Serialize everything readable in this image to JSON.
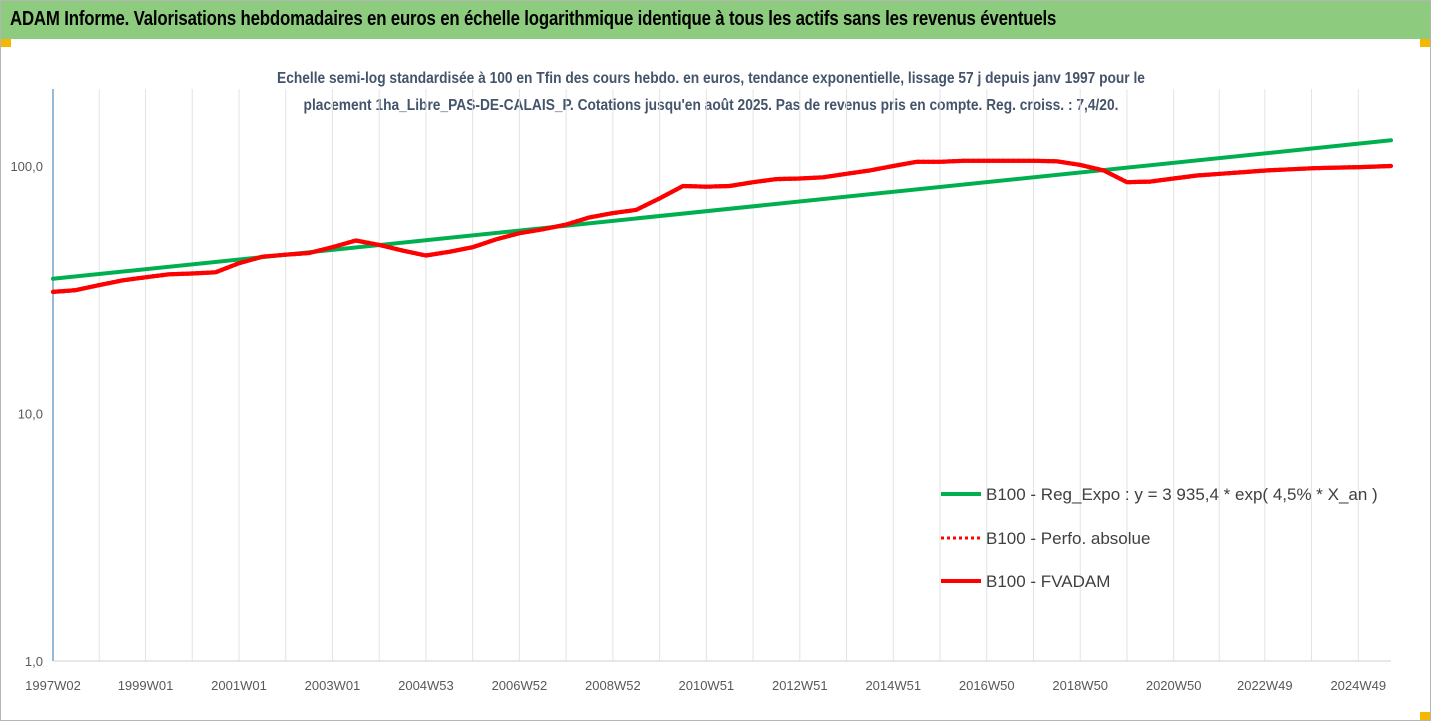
{
  "header": {
    "title": "ADAM Informe. Valorisations hebdomadaires en euros en échelle logarithmique identique à tous les actifs sans les revenus éventuels"
  },
  "chart_data": {
    "type": "line",
    "subtitle_line1": "Echelle semi-log standardisée à 100 en Tfin des cours hebdo. en euros, tendance exponentielle, lissage 57 j depuis janv 1997 pour le",
    "subtitle_line2": "placement 1ha_Libre_PAS-DE-CALAIS_P. Cotations jusqu'en août 2025. Pas de revenus pris en compte. Reg. croiss. : 7,4/20.",
    "y_scale": "log",
    "ylim": [
      1,
      200
    ],
    "y_ticks": [
      {
        "value": 1,
        "label": "1,0"
      },
      {
        "value": 10,
        "label": "10,0"
      },
      {
        "value": 100,
        "label": "100,0"
      }
    ],
    "xlim": [
      1997.02,
      2025.65
    ],
    "x_ticks": [
      {
        "value": 1997.02,
        "label": "1997W02"
      },
      {
        "value": 1999.0,
        "label": "1999W01"
      },
      {
        "value": 2001.0,
        "label": "2001W01"
      },
      {
        "value": 2003.0,
        "label": "2003W01"
      },
      {
        "value": 2005.0,
        "label": "2004W53"
      },
      {
        "value": 2007.0,
        "label": "2006W52"
      },
      {
        "value": 2009.0,
        "label": "2008W52"
      },
      {
        "value": 2011.0,
        "label": "2010W51"
      },
      {
        "value": 2013.0,
        "label": "2012W51"
      },
      {
        "value": 2015.0,
        "label": "2014W51"
      },
      {
        "value": 2017.0,
        "label": "2016W50"
      },
      {
        "value": 2019.0,
        "label": "2018W50"
      },
      {
        "value": 2021.0,
        "label": "2020W50"
      },
      {
        "value": 2022.95,
        "label": "2022W49"
      },
      {
        "value": 2024.95,
        "label": "2024W49"
      }
    ],
    "grid": "vertical",
    "legend_position": "bottom-right",
    "series": [
      {
        "name": "B100 - Reg_Expo : y = 3 935,4 * exp( 4,5% *  X_an )",
        "color": "#00b050",
        "style": "solid",
        "x": [
          1997.02,
          2025.65
        ],
        "y": [
          35,
          127
        ]
      },
      {
        "name": "B100 - Perfo. absolue",
        "color": "#ff0000",
        "style": "dotted",
        "x": [
          1997.02,
          1997.5,
          1998.0,
          1998.5,
          1999.0,
          1999.5,
          2000.0,
          2000.5,
          2001.0,
          2001.5,
          2002.0,
          2002.5,
          2003.0,
          2003.5,
          2004.0,
          2004.5,
          2005.0,
          2005.5,
          2006.0,
          2006.5,
          2007.0,
          2007.5,
          2008.0,
          2008.5,
          2009.0,
          2009.5,
          2010.0,
          2010.5,
          2011.0,
          2011.5,
          2012.0,
          2012.5,
          2013.0,
          2013.5,
          2014.0,
          2014.5,
          2015.0,
          2015.5,
          2016.0,
          2016.5,
          2017.0,
          2017.5,
          2018.0,
          2018.5,
          2019.0,
          2019.5,
          2020.0,
          2020.5,
          2021.0,
          2021.5,
          2022.0,
          2022.5,
          2023.0,
          2023.5,
          2024.0,
          2024.5,
          2025.0,
          2025.65
        ],
        "y": [
          31,
          31.5,
          33,
          34.5,
          35.5,
          36.5,
          36.8,
          37.2,
          40.5,
          43.0,
          43.8,
          44.5,
          47.0,
          50.0,
          48.0,
          45.5,
          43.5,
          45.0,
          47.0,
          50.5,
          53.5,
          55.5,
          58.0,
          62.0,
          64.5,
          66.5,
          74.0,
          83.0,
          82.5,
          83.0,
          86.0,
          88.5,
          89.0,
          90.0,
          93.0,
          96.0,
          100.0,
          104.0,
          104.0,
          105.0,
          105.0,
          105.0,
          105.0,
          104.5,
          101.0,
          96.0,
          86.0,
          86.5,
          89.0,
          91.5,
          93.0,
          94.5,
          96.0,
          97.0,
          98.0,
          98.5,
          99.0,
          100.0
        ]
      },
      {
        "name": "B100 - FVADAM",
        "color": "#ff0000",
        "style": "solid",
        "x": [
          1997.02,
          1997.5,
          1998.0,
          1998.5,
          1999.0,
          1999.5,
          2000.0,
          2000.5,
          2001.0,
          2001.5,
          2002.0,
          2002.5,
          2003.0,
          2003.5,
          2004.0,
          2004.5,
          2005.0,
          2005.5,
          2006.0,
          2006.5,
          2007.0,
          2007.5,
          2008.0,
          2008.5,
          2009.0,
          2009.5,
          2010.0,
          2010.5,
          2011.0,
          2011.5,
          2012.0,
          2012.5,
          2013.0,
          2013.5,
          2014.0,
          2014.5,
          2015.0,
          2015.5,
          2016.0,
          2016.5,
          2017.0,
          2017.5,
          2018.0,
          2018.5,
          2019.0,
          2019.5,
          2020.0,
          2020.5,
          2021.0,
          2021.5,
          2022.0,
          2022.5,
          2023.0,
          2023.5,
          2024.0,
          2024.5,
          2025.0,
          2025.65
        ],
        "y": [
          31,
          31.5,
          33,
          34.5,
          35.5,
          36.5,
          36.8,
          37.2,
          40.5,
          43.0,
          43.8,
          44.5,
          47.0,
          50.0,
          48.0,
          45.5,
          43.5,
          45.0,
          47.0,
          50.5,
          53.5,
          55.5,
          58.0,
          62.0,
          64.5,
          66.5,
          74.0,
          83.0,
          82.5,
          83.0,
          86.0,
          88.5,
          89.0,
          90.0,
          93.0,
          96.0,
          100.0,
          104.0,
          104.0,
          105.0,
          105.0,
          105.0,
          105.0,
          104.5,
          101.0,
          96.0,
          86.0,
          86.5,
          89.0,
          91.5,
          93.0,
          94.5,
          96.0,
          97.0,
          98.0,
          98.5,
          99.0,
          100.0
        ]
      }
    ]
  }
}
